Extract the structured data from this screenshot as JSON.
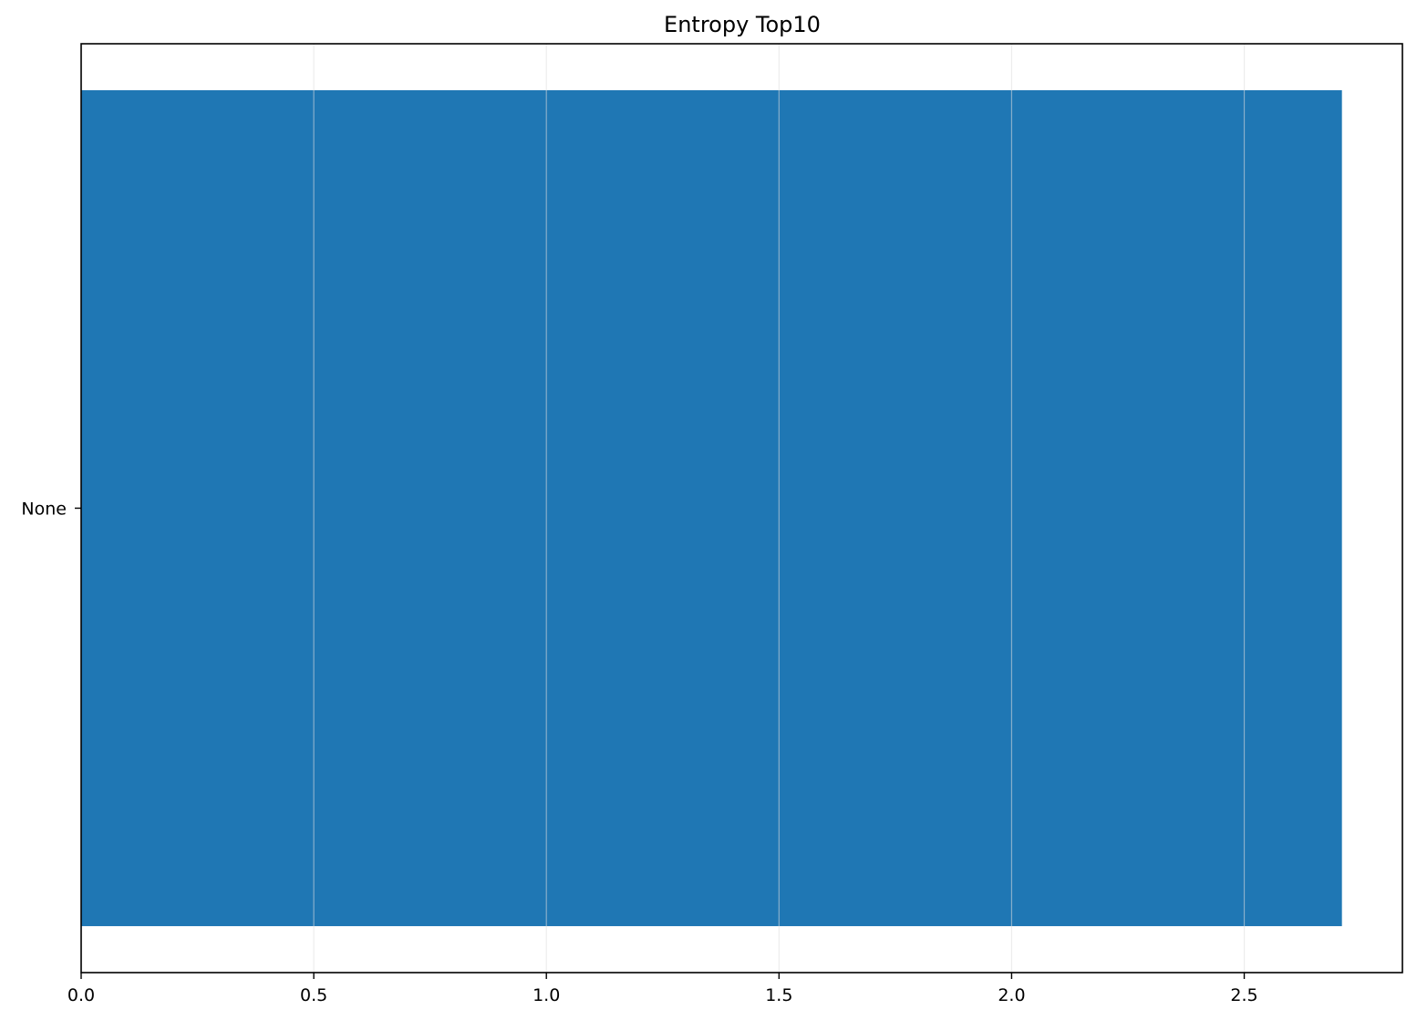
{
  "chart_data": {
    "type": "bar",
    "orientation": "horizontal",
    "title": "Entropy Top10",
    "xlabel": "",
    "ylabel": "",
    "categories": [
      "None"
    ],
    "values": [
      2.71
    ],
    "xlim": [
      0,
      2.84
    ],
    "xticks": [
      0,
      0.5,
      1,
      1.5,
      2,
      2.5
    ],
    "xtick_labels": [
      "0.0",
      "0.5",
      "1.0",
      "1.5",
      "2.0",
      "2.5"
    ],
    "grid": "x",
    "legend": "none",
    "bar_color": "#1f77b4",
    "grid_color": "#dedede"
  }
}
